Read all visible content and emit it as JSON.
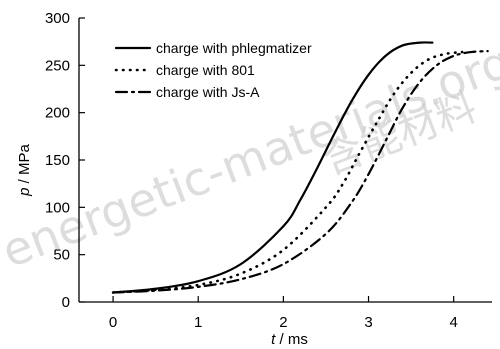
{
  "chart_data": {
    "type": "line",
    "xlabel_var": "t",
    "xlabel_unit": " / ms",
    "ylabel_var": "p",
    "ylabel_unit": " / MPa",
    "xlim": [
      -0.4,
      4.45
    ],
    "ylim": [
      0,
      300
    ],
    "xticks": [
      0,
      1,
      2,
      3,
      4
    ],
    "yticks": [
      0,
      50,
      100,
      150,
      200,
      250,
      300
    ],
    "legend_position": "top-left",
    "grid": false,
    "series": [
      {
        "name": "charge with phlegmatizer",
        "style": "solid",
        "x": [
          0,
          0.5,
          1.0,
          1.5,
          2.0,
          2.2,
          2.4,
          2.6,
          2.8,
          3.0,
          3.2,
          3.4,
          3.6,
          3.75
        ],
        "y": [
          10,
          14,
          22,
          40,
          80,
          108,
          142,
          178,
          212,
          240,
          260,
          271,
          274,
          274
        ]
      },
      {
        "name": "charge with 801",
        "style": "dotted",
        "x": [
          0,
          0.5,
          1.0,
          1.5,
          2.0,
          2.5,
          2.7,
          2.9,
          3.1,
          3.3,
          3.5,
          3.7,
          3.9,
          4.1
        ],
        "y": [
          10,
          13,
          18,
          30,
          55,
          100,
          125,
          158,
          190,
          220,
          242,
          256,
          262,
          264
        ]
      },
      {
        "name": "charge with Js-A",
        "style": "dashdot",
        "x": [
          0,
          0.5,
          1.0,
          1.5,
          2.0,
          2.5,
          2.8,
          3.0,
          3.2,
          3.4,
          3.6,
          3.8,
          4.0,
          4.2,
          4.4
        ],
        "y": [
          10,
          12,
          16,
          24,
          40,
          72,
          105,
          135,
          170,
          205,
          232,
          250,
          260,
          264,
          265
        ]
      }
    ]
  },
  "watermark": {
    "line1": "energetic-materials.org.cn",
    "line2": "含能材料"
  }
}
